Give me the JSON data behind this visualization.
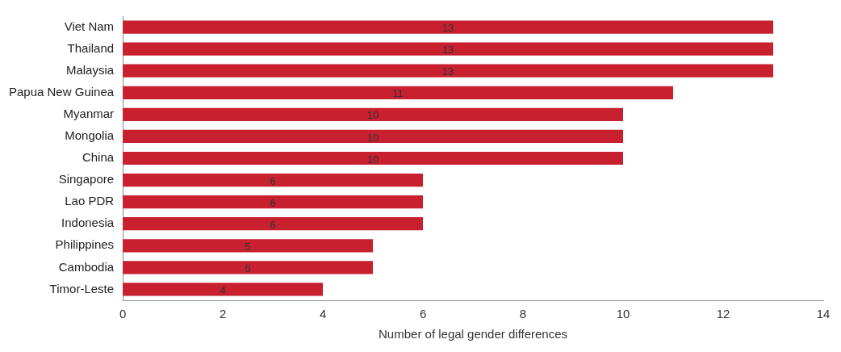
{
  "chart_data": {
    "type": "bar",
    "orientation": "horizontal",
    "xlabel": "Number of legal gender differences",
    "categories": [
      "Viet Nam",
      "Thailand",
      "Malaysia",
      "Papua New Guinea",
      "Myanmar",
      "Mongolia",
      "China",
      "Singapore",
      "Lao PDR",
      "Indonesia",
      "Philippines",
      "Cambodia",
      "Timor-Leste"
    ],
    "values": [
      13,
      13,
      13,
      11,
      10,
      10,
      10,
      6,
      6,
      6,
      5,
      5,
      4
    ],
    "color": "#c8202f",
    "xlim": [
      0,
      14
    ],
    "xticks": [
      0,
      2,
      4,
      6,
      8,
      10,
      12,
      14
    ],
    "grid": false,
    "legend": false,
    "data_labels": true
  }
}
